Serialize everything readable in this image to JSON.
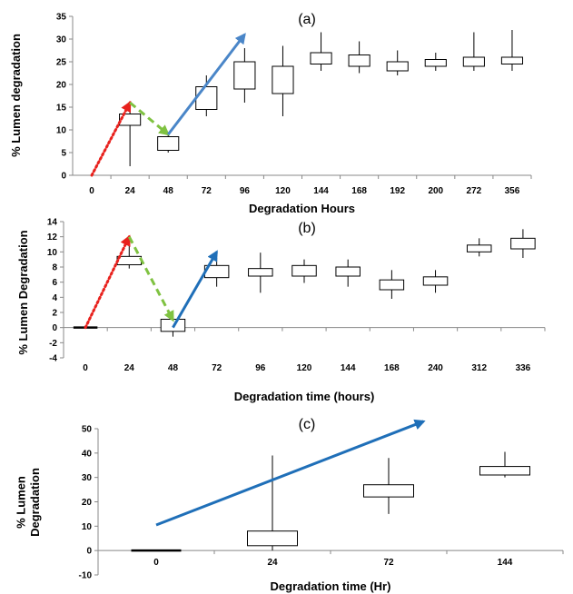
{
  "chart_data": [
    {
      "type": "box",
      "panel_label": "(a)",
      "xlabel": "Degradation Hours",
      "ylabel": "% Lumen degradation",
      "ylim": [
        0,
        35
      ],
      "yticks": [
        0,
        5,
        10,
        15,
        20,
        25,
        30,
        35
      ],
      "categories": [
        "0",
        "24",
        "48",
        "72",
        "96",
        "120",
        "144",
        "168",
        "192",
        "200",
        "272",
        "356"
      ],
      "boxes": [
        null,
        {
          "min": 2,
          "q1": 11,
          "q3": 13.5,
          "max": 16
        },
        {
          "min": 5,
          "q1": 5.5,
          "q3": 8.5,
          "max": 9
        },
        {
          "min": 13,
          "q1": 14.5,
          "q3": 19.5,
          "max": 22
        },
        {
          "min": 16,
          "q1": 19,
          "q3": 25,
          "max": 28
        },
        {
          "min": 13,
          "q1": 18,
          "q3": 24,
          "max": 28.5
        },
        {
          "min": 23,
          "q1": 24.5,
          "q3": 27,
          "max": 31.5
        },
        {
          "min": 22.5,
          "q1": 24,
          "q3": 26.5,
          "max": 29.5
        },
        {
          "min": 22,
          "q1": 23,
          "q3": 25,
          "max": 27.5
        },
        {
          "min": 23,
          "q1": 24,
          "q3": 25.5,
          "max": 27
        },
        {
          "min": 23,
          "q1": 24,
          "q3": 26,
          "max": 31.5
        },
        {
          "min": 23,
          "q1": 24.5,
          "q3": 26,
          "max": 32
        }
      ],
      "trend_arrows": [
        {
          "color": "#e8211d",
          "style": "dotted",
          "from": [
            0,
            0
          ],
          "to": [
            1,
            16
          ]
        },
        {
          "color": "#7fc241",
          "style": "dashed",
          "from": [
            1,
            16
          ],
          "to": [
            2,
            9
          ]
        },
        {
          "color": "#4a86c8",
          "style": "solid",
          "from": [
            2,
            9
          ],
          "to": [
            4,
            31
          ]
        }
      ]
    },
    {
      "type": "box",
      "panel_label": "(b)",
      "xlabel": "Degradation time (hours)",
      "ylabel": "% Lumen Degradation",
      "ylim": [
        -4,
        14
      ],
      "yticks": [
        -4,
        -2,
        0,
        2,
        4,
        6,
        8,
        10,
        12,
        14
      ],
      "categories": [
        "0",
        "24",
        "48",
        "72",
        "96",
        "120",
        "144",
        "168",
        "240",
        "312",
        "336"
      ],
      "boxes": [
        {
          "min": 0,
          "q1": 0,
          "q3": 0,
          "max": 0
        },
        {
          "min": 7.8,
          "q1": 8.3,
          "q3": 9.4,
          "max": 11
        },
        {
          "min": -1.2,
          "q1": -0.5,
          "q3": 1.1,
          "max": 2
        },
        {
          "min": 5.4,
          "q1": 6.6,
          "q3": 8.2,
          "max": 9.2
        },
        {
          "min": 4.6,
          "q1": 6.8,
          "q3": 7.8,
          "max": 9.9
        },
        {
          "min": 5.9,
          "q1": 6.8,
          "q3": 8.2,
          "max": 9
        },
        {
          "min": 5.4,
          "q1": 6.8,
          "q3": 8,
          "max": 9
        },
        {
          "min": 3.8,
          "q1": 5,
          "q3": 6.3,
          "max": 7.6
        },
        {
          "min": 4.6,
          "q1": 5.6,
          "q3": 6.7,
          "max": 7.6
        },
        {
          "min": 9.4,
          "q1": 10,
          "q3": 10.9,
          "max": 11.8
        },
        {
          "min": 9.2,
          "q1": 10.4,
          "q3": 11.8,
          "max": 13
        }
      ],
      "trend_arrows": [
        {
          "color": "#e8211d",
          "style": "dotted",
          "from": [
            0,
            0
          ],
          "to": [
            1,
            12
          ]
        },
        {
          "color": "#7fc241",
          "style": "dashed",
          "from": [
            1,
            12
          ],
          "to": [
            2,
            1
          ]
        },
        {
          "color": "#1f6fb8",
          "style": "solid",
          "from": [
            2,
            0
          ],
          "to": [
            3,
            10
          ]
        }
      ]
    },
    {
      "type": "box",
      "panel_label": "(c)",
      "xlabel": "Degradation time (Hr)",
      "ylabel_lines": [
        "% Lumen",
        "Degradation"
      ],
      "ylim": [
        -10,
        50
      ],
      "yticks": [
        -10,
        0,
        10,
        20,
        30,
        40,
        50
      ],
      "categories": [
        "0",
        "24",
        "72",
        "144"
      ],
      "boxes": [
        {
          "min": 0,
          "q1": 0,
          "q3": 0,
          "max": 0
        },
        {
          "min": 0,
          "q1": 2,
          "q3": 8,
          "max": 39
        },
        {
          "min": 15,
          "q1": 22,
          "q3": 27,
          "max": 38
        },
        {
          "min": 30,
          "q1": 31,
          "q3": 34.5,
          "max": 40.5
        }
      ],
      "trend_arrows": [
        {
          "color": "#1f6fb8",
          "style": "solid",
          "from": [
            0,
            10.5
          ],
          "to": [
            2.3,
            53
          ]
        }
      ]
    }
  ]
}
